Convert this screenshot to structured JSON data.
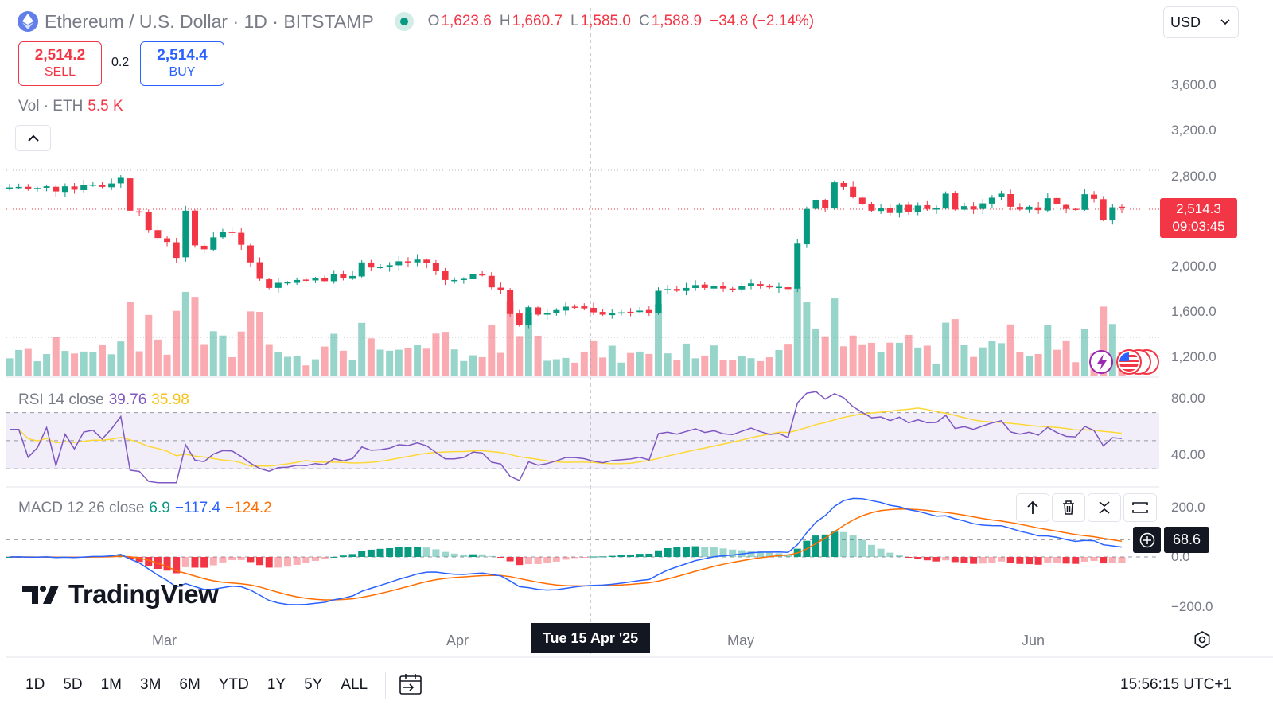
{
  "header": {
    "symbol_title": "Ethereum / U.S. Dollar · 1D · BITSTAMP",
    "ohlc": {
      "o_label": "O",
      "o": "1,623.6",
      "h_label": "H",
      "h": "1,660.7",
      "l_label": "L",
      "l": "1,585.0",
      "c_label": "C",
      "c": "1,588.9",
      "change": "−34.8 (−2.14%)"
    },
    "currency": "USD"
  },
  "trade": {
    "sell_price": "2,514.2",
    "sell_label": "SELL",
    "spread": "0.2",
    "buy_price": "2,514.4",
    "buy_label": "BUY"
  },
  "volume_legend": {
    "label": "Vol · ETH",
    "value": "5.5 K"
  },
  "rsi_legend": {
    "label": "RSI 14 close",
    "rsi": "39.76",
    "ma": "35.98"
  },
  "macd_legend": {
    "label": "MACD 12 26 close",
    "hist": "6.9",
    "macd": "−117.4",
    "signal": "−124.2"
  },
  "price_axis": {
    "labels": [
      "3,600.0",
      "3,200.0",
      "2,800.0",
      "2,000.0",
      "1,600.0",
      "1,200.0"
    ]
  },
  "rsi_axis": {
    "labels": [
      "80.00",
      "40.00"
    ]
  },
  "macd_axis": {
    "labels": [
      "200.0",
      "0.0",
      "−200.0"
    ]
  },
  "last_price": {
    "value": "2,514.3",
    "countdown": "09:03:45"
  },
  "macd_value": "68.6",
  "time_axis": {
    "labels": [
      "Mar",
      "Apr",
      "May",
      "Jun"
    ]
  },
  "crosshair_date": "Tue 15 Apr '25",
  "brand": "TradingView",
  "ranges": [
    "1D",
    "5D",
    "1M",
    "3M",
    "6M",
    "YTD",
    "1Y",
    "5Y",
    "ALL"
  ],
  "clock": "15:56:15 UTC+1",
  "colors": {
    "up": "#089981",
    "down": "#f23645",
    "rsi": "#7e57c2",
    "rsi_ma": "#fdd835",
    "macd": "#2962ff",
    "signal": "#ff6d00"
  },
  "chart_data": {
    "type": "candlestick",
    "closes": [
      2695,
      2700,
      2685,
      2690,
      2705,
      2660,
      2705,
      2675,
      2715,
      2720,
      2700,
      2730,
      2780,
      2490,
      2475,
      2320,
      2250,
      2215,
      2075,
      2490,
      2185,
      2150,
      2255,
      2305,
      2300,
      2190,
      2035,
      1890,
      1810,
      1855,
      1860,
      1880,
      1875,
      1895,
      1870,
      1930,
      1895,
      1915,
      2035,
      1990,
      1995,
      2010,
      2045,
      2035,
      2060,
      2030,
      1960,
      1880,
      1880,
      1890,
      1930,
      1920,
      1815,
      1790,
      1580,
      1480,
      1640,
      1575,
      1590,
      1615,
      1645,
      1645,
      1630,
      1595,
      1575,
      1590,
      1595,
      1600,
      1610,
      1585,
      1785,
      1800,
      1785,
      1810,
      1835,
      1810,
      1825,
      1805,
      1800,
      1825,
      1850,
      1830,
      1815,
      1820,
      1800,
      2200,
      2505,
      2580,
      2515,
      2740,
      2700,
      2610,
      2550,
      2490,
      2510,
      2470,
      2540,
      2480,
      2535,
      2505,
      2510,
      2640,
      2500,
      2530,
      2500,
      2555,
      2605,
      2640,
      2525,
      2500,
      2525,
      2495,
      2600,
      2545,
      2505,
      2500,
      2635,
      2595,
      2410,
      2520,
      2510
    ]
  }
}
